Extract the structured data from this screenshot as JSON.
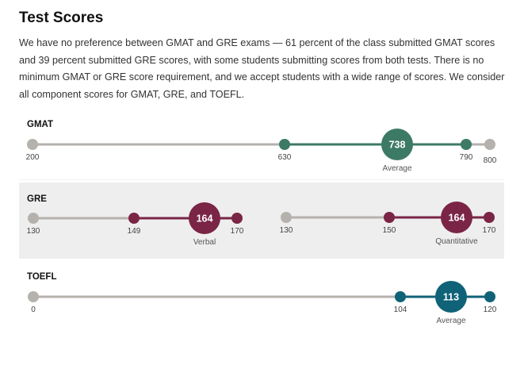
{
  "header": {
    "title": "Test Scores",
    "intro": "We have no preference between GMAT and GRE exams — 61 percent of the class submitted GMAT scores and 39 percent submitted GRE scores, with some students submitting scores from both tests. There is no minimum GMAT or GRE score requirement, and we accept students with a wide range of scores. We consider all component scores for GMAT, GRE, and TOEFL."
  },
  "colors": {
    "gmat": "#3d7a66",
    "gre": "#7a2546",
    "toefl": "#0f6277",
    "track": "#b5b2ae",
    "panel": "#eeeeee"
  },
  "chart_data": {
    "type": "range",
    "charts": [
      {
        "section": "GMAT",
        "series": [
          {
            "name": "GMAT",
            "scale_min": 200,
            "scale_max": 800,
            "range_low": 630,
            "range_high": 790,
            "average": 738,
            "average_label": "Average",
            "color_key": "gmat",
            "tick_labels": {
              "min": "200",
              "low": "630",
              "avg": "738",
              "high": "790",
              "max": "800"
            }
          }
        ]
      },
      {
        "section": "GRE",
        "series": [
          {
            "name": "Verbal",
            "scale_min": 130,
            "scale_max": 170,
            "range_low": 149,
            "range_high": 170,
            "average": 164,
            "average_label": "Verbal",
            "color_key": "gre",
            "tick_labels": {
              "min": "130",
              "low": "149",
              "avg": "164",
              "high": "170"
            }
          },
          {
            "name": "Quantitative",
            "scale_min": 130,
            "scale_max": 170,
            "range_low": 150,
            "range_high": 170,
            "average": 164,
            "average_label": "Quantitative",
            "color_key": "gre",
            "tick_labels": {
              "min": "130",
              "low": "150",
              "avg": "164",
              "high": "170"
            }
          }
        ]
      },
      {
        "section": "TOEFL",
        "series": [
          {
            "name": "TOEFL",
            "scale_min": 0,
            "scale_max": 120,
            "range_low": 104,
            "range_high": 120,
            "average": 113,
            "average_label": "Average",
            "color_key": "toefl",
            "tick_labels": {
              "min": "0",
              "low": "104",
              "avg": "113",
              "high": "120"
            }
          }
        ]
      }
    ]
  }
}
